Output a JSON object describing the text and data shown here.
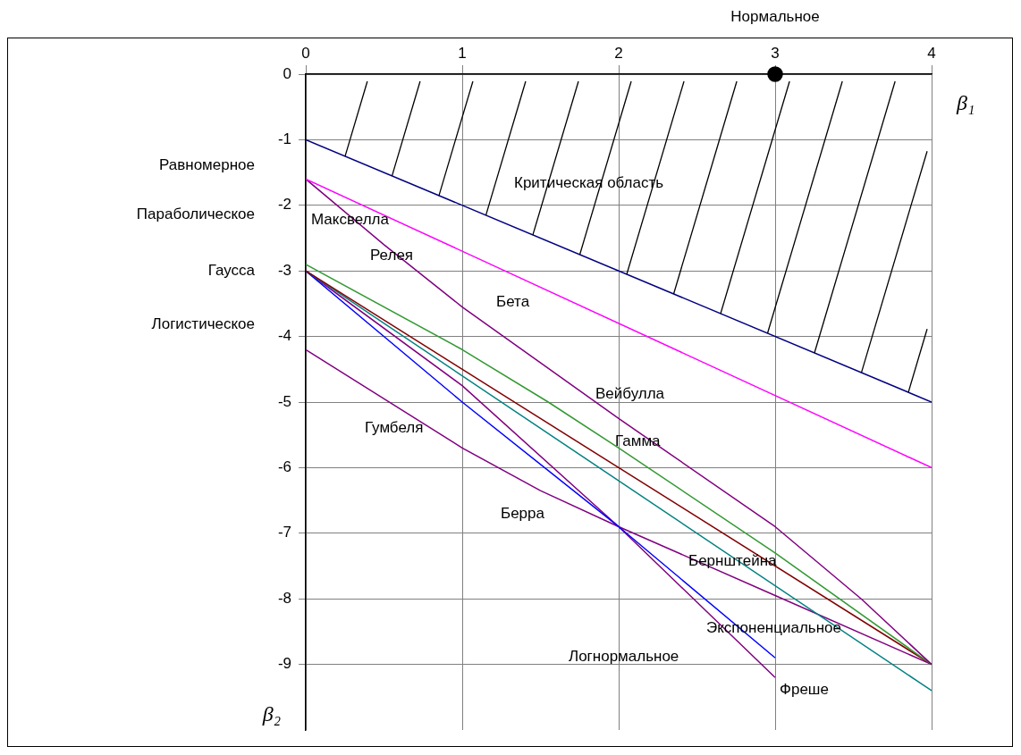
{
  "chart_data": {
    "type": "line",
    "xlabel": "β₁",
    "ylabel": "β₂",
    "xlim": [
      0,
      4
    ],
    "xticks": [
      0,
      1,
      2,
      3,
      4
    ],
    "ylim": [
      -10,
      0
    ],
    "yticks": [
      0,
      -1,
      -2,
      -3,
      -4,
      -5,
      -6,
      -7,
      -8,
      -9
    ],
    "grid": true,
    "legend": false,
    "series": [
      {
        "color": "#000080",
        "x": [
          0,
          4
        ],
        "values": [
          -1,
          -5
        ]
      },
      {
        "color": "#ff00ff",
        "x": [
          0,
          4
        ],
        "values": [
          -1.6,
          -6
        ]
      },
      {
        "color": "#800080",
        "x": [
          0,
          0.5,
          1,
          2,
          3,
          3.55,
          4
        ],
        "values": [
          -1.6,
          -2.6,
          -3.55,
          -5.25,
          -6.9,
          -8.0,
          -9
        ]
      },
      {
        "color": "#339933",
        "x": [
          0,
          1,
          1.55,
          2,
          3,
          4
        ],
        "values": [
          -2.9,
          -4.2,
          -5.0,
          -5.7,
          -7.3,
          -9
        ]
      },
      {
        "color": "#800000",
        "x": [
          0,
          4
        ],
        "values": [
          -3,
          -9
        ]
      },
      {
        "color": "#008080",
        "x": [
          0,
          4
        ],
        "values": [
          -3,
          -9.4
        ]
      },
      {
        "color": "#0000ff",
        "x": [
          0,
          1,
          2,
          3
        ],
        "values": [
          -3,
          -5,
          -6.9,
          -8.9
        ]
      },
      {
        "color": "#800080",
        "x": [
          0,
          1,
          2,
          3
        ],
        "values": [
          -3,
          -4.75,
          -6.9,
          -9.2
        ]
      },
      {
        "color": "#800080",
        "x": [
          0,
          1,
          1.5,
          2,
          3,
          4
        ],
        "values": [
          -4.2,
          -5.7,
          -6.35,
          -6.9,
          -7.95,
          -9
        ]
      },
      {
        "type": "scatter",
        "name": "Нормальное",
        "color": "#000000",
        "x": [
          3
        ],
        "values": [
          0
        ]
      }
    ],
    "annotations": [
      "Равномерное",
      "Параболическое",
      "Гаусса",
      "Логистическое",
      "Критическая область",
      "Максвелла",
      "Релея",
      "Бета",
      "Вейбулла",
      "Гамма",
      "Гумбеля",
      "Берра",
      "Бернштейна",
      "Экспоненциальное",
      "Логнормальное",
      "Фреше"
    ]
  }
}
